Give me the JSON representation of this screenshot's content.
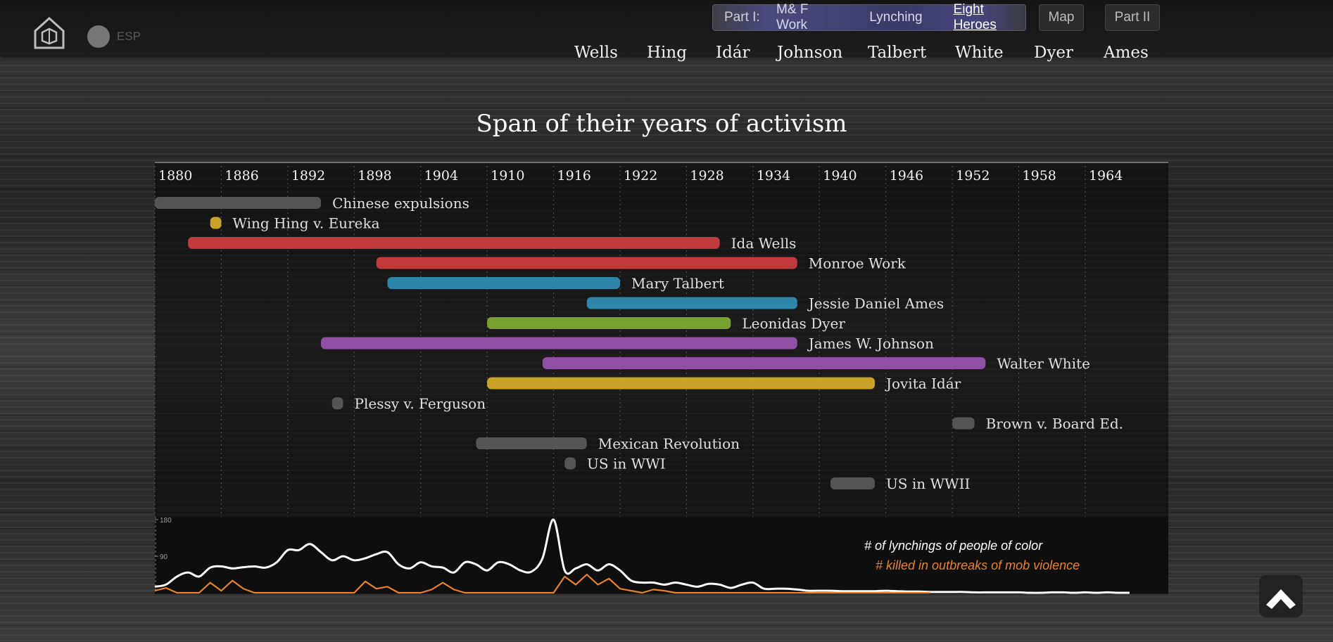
{
  "nav": {
    "lang": "ESP",
    "part1_label": "Part I:",
    "part1_items": [
      {
        "label": "M& F Work",
        "active": false
      },
      {
        "label": "Lynching",
        "active": false
      },
      {
        "label": "Eight Heroes",
        "active": true
      }
    ],
    "map_label": "Map",
    "part2_label": "Part II",
    "heroes": [
      "Wells",
      "Hing",
      "Idár",
      "Johnson",
      "Talbert",
      "White",
      "Dyer",
      "Ames"
    ]
  },
  "chart_data": [
    {
      "type": "timeline",
      "title": "Span of their years of activism",
      "x_ticks": [
        1880,
        1886,
        1892,
        1898,
        1904,
        1910,
        1916,
        1922,
        1928,
        1934,
        1940,
        1946,
        1952,
        1958,
        1964
      ],
      "xlim": [
        1880,
        1971.5
      ],
      "bars": [
        {
          "label": "Chinese expulsions",
          "start": 1880,
          "end": 1895,
          "color": "#555555"
        },
        {
          "label": "Wing Hing v. Eureka",
          "start": 1885,
          "end": 1886,
          "color": "#c9a227"
        },
        {
          "label": "Ida Wells",
          "start": 1883,
          "end": 1931,
          "color": "#c0393b"
        },
        {
          "label": "Monroe Work",
          "start": 1900,
          "end": 1938,
          "color": "#c0393b"
        },
        {
          "label": "Mary Talbert",
          "start": 1901,
          "end": 1922,
          "color": "#2e86ab"
        },
        {
          "label": "Jessie Daniel Ames",
          "start": 1919,
          "end": 1938,
          "color": "#2e86ab"
        },
        {
          "label": "Leonidas Dyer",
          "start": 1910,
          "end": 1932,
          "color": "#78a22f"
        },
        {
          "label": "James W. Johnson",
          "start": 1895,
          "end": 1938,
          "color": "#8e4fa5"
        },
        {
          "label": "Walter White",
          "start": 1915,
          "end": 1955,
          "color": "#8e4fa5"
        },
        {
          "label": "Jovita Idár",
          "start": 1910,
          "end": 1945,
          "color": "#c9a227"
        },
        {
          "label": "Plessy v. Ferguson",
          "start": 1896,
          "end": 1897,
          "color": "#555555"
        },
        {
          "label": "Brown v. Board Ed.",
          "start": 1952,
          "end": 1954,
          "color": "#555555"
        },
        {
          "label": "Mexican Revolution",
          "start": 1909,
          "end": 1919,
          "color": "#555555"
        },
        {
          "label": "US in WWI",
          "start": 1917,
          "end": 1918,
          "color": "#555555"
        },
        {
          "label": "US in WWII",
          "start": 1941,
          "end": 1945,
          "color": "#555555"
        }
      ]
    },
    {
      "type": "line",
      "y_ticks": [
        90,
        180
      ],
      "ylim": [
        0,
        180
      ],
      "series": [
        {
          "name": "# of lynchings of people of color",
          "color": "#ffffff",
          "x": [
            1880,
            1881,
            1882,
            1883,
            1884,
            1885,
            1886,
            1887,
            1888,
            1889,
            1890,
            1891,
            1892,
            1893,
            1894,
            1895,
            1896,
            1897,
            1898,
            1899,
            1900,
            1901,
            1902,
            1903,
            1904,
            1905,
            1906,
            1907,
            1908,
            1909,
            1910,
            1911,
            1912,
            1913,
            1914,
            1915,
            1916,
            1917,
            1918,
            1919,
            1920,
            1921,
            1922,
            1923,
            1924,
            1925,
            1926,
            1927,
            1928,
            1929,
            1930,
            1931,
            1932,
            1933,
            1934,
            1935,
            1936,
            1937,
            1938,
            1939,
            1940,
            1941,
            1942,
            1943,
            1944,
            1945,
            1946,
            1947,
            1948,
            1949,
            1950,
            1951,
            1952,
            1953,
            1954,
            1955,
            1956,
            1957,
            1958,
            1959,
            1960,
            1961,
            1962,
            1963,
            1964,
            1965,
            1966,
            1967,
            1968
          ],
          "values": [
            15,
            20,
            40,
            50,
            40,
            62,
            65,
            60,
            63,
            65,
            62,
            75,
            105,
            105,
            120,
            100,
            80,
            90,
            80,
            85,
            95,
            100,
            70,
            60,
            75,
            65,
            62,
            50,
            75,
            70,
            55,
            75,
            70,
            55,
            52,
            85,
            180,
            55,
            60,
            70,
            55,
            70,
            55,
            30,
            25,
            25,
            20,
            25,
            20,
            15,
            22,
            20,
            12,
            20,
            25,
            10,
            10,
            10,
            8,
            5,
            5,
            5,
            4,
            4,
            4,
            4,
            5,
            4,
            3,
            3,
            2,
            2,
            2,
            2,
            1,
            1,
            1,
            1,
            1,
            0,
            0,
            1,
            1,
            0,
            1,
            0,
            1,
            0,
            0
          ]
        },
        {
          "name": "# killed in outbreaks of mob violence",
          "color": "#e8822a",
          "x": [
            1880,
            1881,
            1882,
            1883,
            1884,
            1885,
            1886,
            1887,
            1888,
            1889,
            1890,
            1891,
            1892,
            1893,
            1894,
            1895,
            1896,
            1897,
            1898,
            1899,
            1900,
            1901,
            1902,
            1903,
            1904,
            1905,
            1906,
            1907,
            1908,
            1909,
            1910,
            1911,
            1912,
            1913,
            1914,
            1915,
            1916,
            1917,
            1918,
            1919,
            1920,
            1921,
            1922,
            1923,
            1924,
            1925,
            1926,
            1927,
            1928,
            1929,
            1930,
            1931,
            1932,
            1933,
            1934,
            1935,
            1936,
            1937,
            1938,
            1939,
            1940,
            1941,
            1942,
            1943,
            1944,
            1945,
            1946,
            1947,
            1948,
            1949,
            1950
          ],
          "values": [
            5,
            12,
            0,
            0,
            0,
            25,
            5,
            30,
            10,
            0,
            0,
            0,
            0,
            0,
            0,
            0,
            0,
            0,
            0,
            28,
            10,
            15,
            0,
            0,
            0,
            8,
            25,
            8,
            0,
            0,
            0,
            0,
            0,
            0,
            0,
            0,
            0,
            40,
            20,
            45,
            20,
            35,
            10,
            5,
            0,
            8,
            5,
            0,
            0,
            0,
            0,
            0,
            0,
            0,
            0,
            0,
            0,
            0,
            0,
            0,
            0,
            0,
            0,
            0,
            0,
            0,
            0,
            0,
            0,
            0,
            0
          ]
        }
      ]
    }
  ]
}
